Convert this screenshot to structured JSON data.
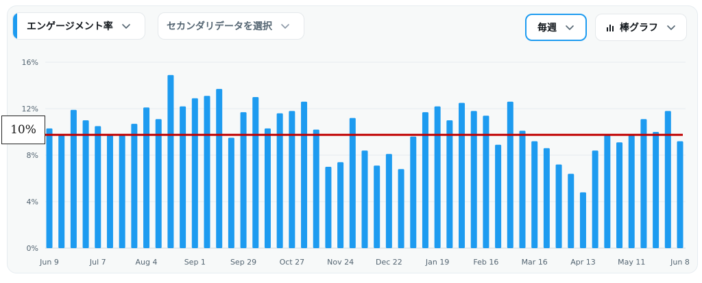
{
  "controls": {
    "metric_label": "エンゲージメント率",
    "secondary_label": "セカンダリデータを選択",
    "period_label": "毎週",
    "chart_type_label": "棒グラフ"
  },
  "icons": {
    "dropdown": "chevron-down-icon",
    "chart_type": "bar-chart-icon"
  },
  "colors": {
    "bar": "#1d9bf0",
    "reference_line": "#c00000",
    "accent": "#1d9bf0"
  },
  "reference_line": {
    "label": "10%",
    "value": 9.75
  },
  "chart_data": {
    "type": "bar",
    "title": "",
    "xlabel": "",
    "ylabel": "",
    "ylim": [
      0,
      16
    ],
    "y_ticks": [
      0,
      4,
      8,
      12,
      16
    ],
    "y_tick_labels": [
      "0%",
      "4%",
      "8%",
      "12%",
      "16%"
    ],
    "grid": true,
    "x_tick_labels": [
      "Jun 9",
      "Jul 7",
      "Aug 4",
      "Sep 1",
      "Sep 29",
      "Oct 27",
      "Nov 24",
      "Dec 22",
      "Jan 19",
      "Feb 16",
      "Mar 16",
      "Apr 13",
      "May 11",
      "Jun 8"
    ],
    "x_tick_positions": [
      0,
      4,
      8,
      12,
      16,
      20,
      24,
      28,
      32,
      36,
      40,
      44,
      48,
      52
    ],
    "values": [
      10.3,
      9.7,
      11.9,
      11.0,
      10.5,
      9.7,
      9.7,
      10.7,
      12.1,
      11.1,
      14.9,
      12.2,
      12.9,
      13.1,
      13.7,
      9.5,
      11.7,
      13.0,
      10.3,
      11.6,
      11.8,
      12.6,
      10.2,
      7.0,
      7.4,
      11.2,
      8.4,
      7.1,
      8.1,
      6.8,
      9.6,
      11.7,
      12.2,
      11.0,
      12.5,
      11.8,
      11.4,
      8.9,
      12.6,
      10.1,
      9.2,
      8.6,
      7.2,
      6.4,
      4.8,
      8.4,
      9.7,
      9.1,
      9.7,
      11.1,
      10.0,
      11.8,
      9.2
    ]
  }
}
